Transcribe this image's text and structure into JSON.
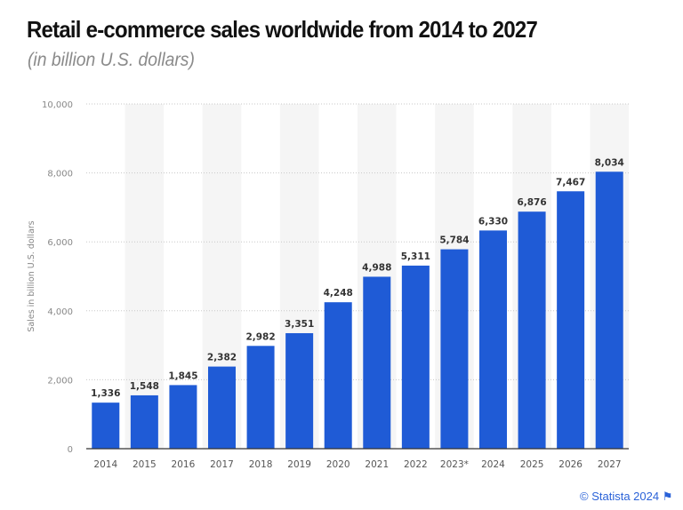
{
  "chart_data": {
    "type": "bar",
    "title": "Retail e-commerce sales worldwide from 2014 to 2027",
    "subtitle": "(in billion U.S. dollars)",
    "xlabel": "",
    "ylabel": "Sales in billion U.S. dollars",
    "categories": [
      "2014",
      "2015",
      "2016",
      "2017",
      "2018",
      "2019",
      "2020",
      "2021",
      "2022",
      "2023*",
      "2024",
      "2025",
      "2026",
      "2027"
    ],
    "values": [
      1336,
      1548,
      1845,
      2382,
      2982,
      3351,
      4248,
      4988,
      5311,
      5784,
      6330,
      6876,
      7467,
      8034
    ],
    "data_labels": [
      "1,336",
      "1,548",
      "1,845",
      "2,382",
      "2,982",
      "3,351",
      "4,248",
      "4,988",
      "5,311",
      "5,784",
      "6,330",
      "6,876",
      "7,467",
      "8,034"
    ],
    "ylim": [
      0,
      10000
    ],
    "yticks": [
      0,
      2000,
      4000,
      6000,
      8000,
      10000
    ],
    "ytick_labels": [
      "0",
      "2,000",
      "4,000",
      "6,000",
      "8,000",
      "10,000"
    ],
    "grid": true,
    "bar_color": "#1f5bd6",
    "credit": "© Statista 2024"
  }
}
